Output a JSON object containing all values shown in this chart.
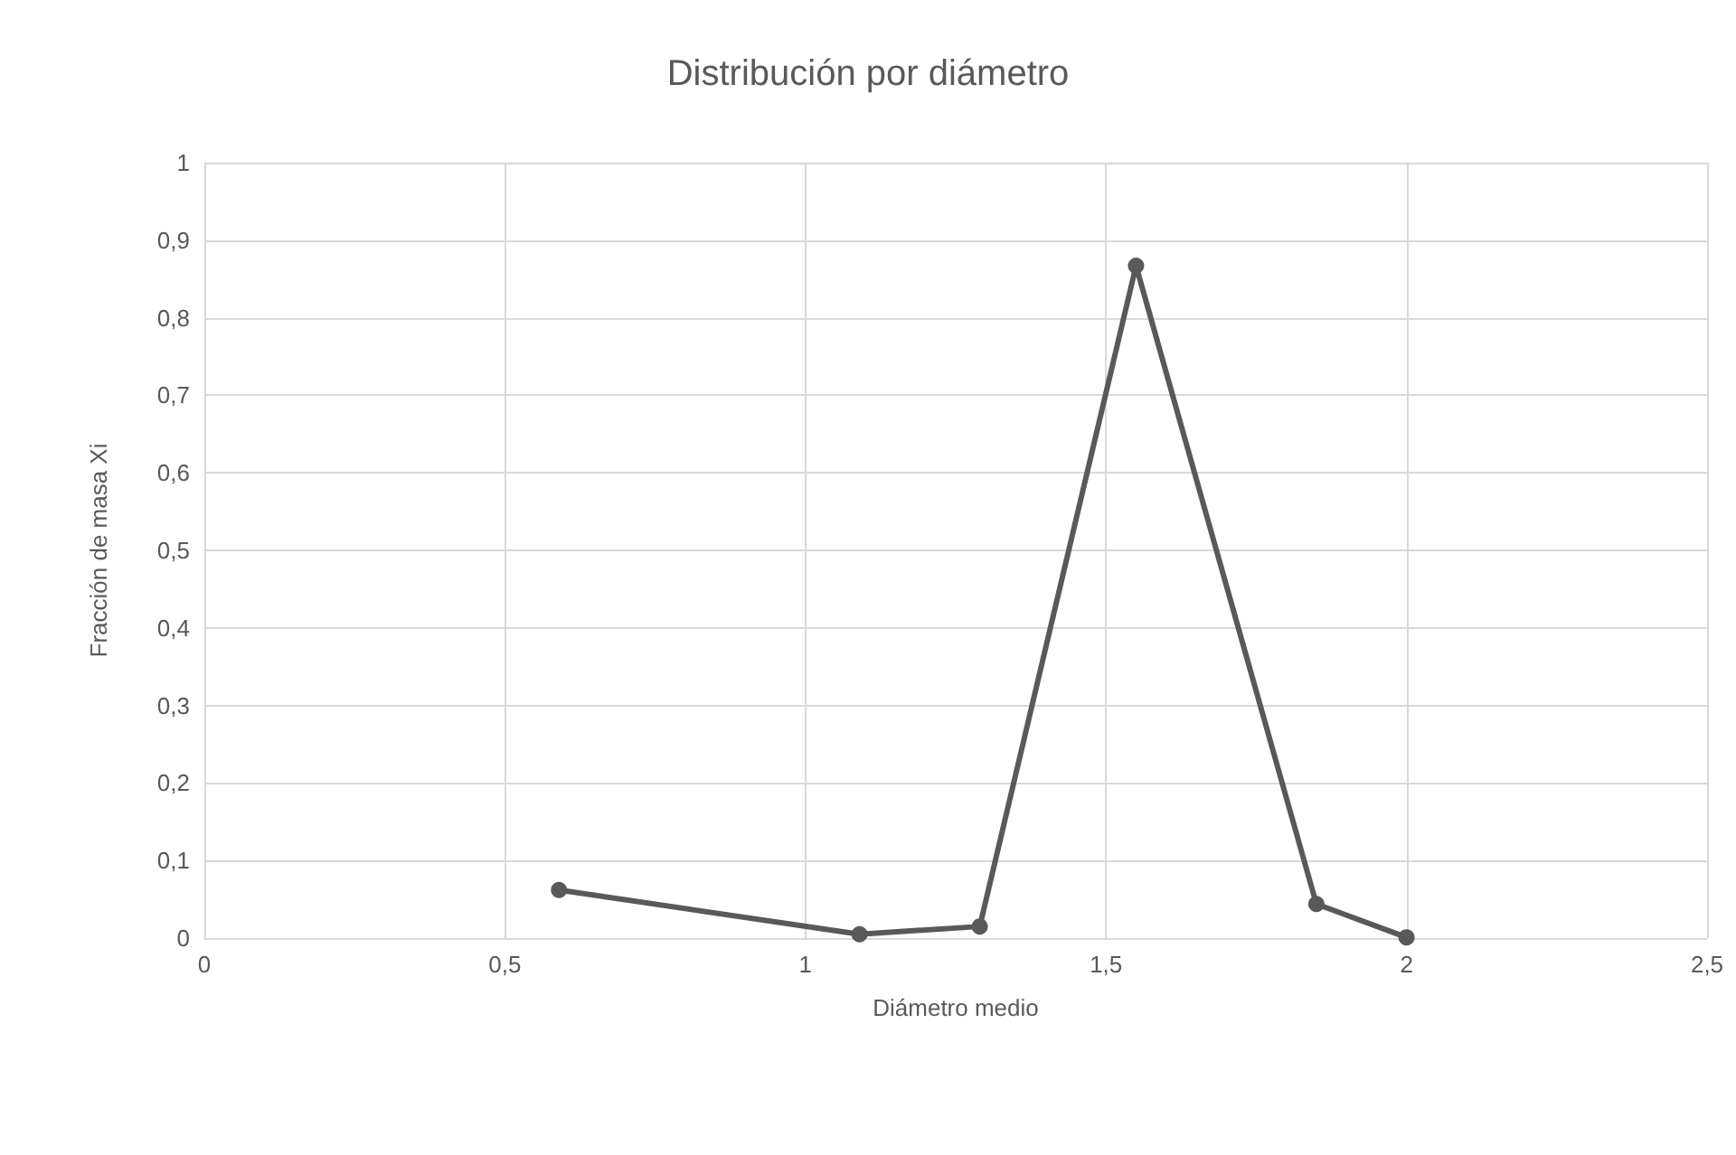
{
  "chart_data": {
    "type": "line",
    "title": "Distribución por diámetro",
    "xlabel": "Diámetro medio",
    "ylabel": "Fracción de masa Xi",
    "x": [
      0.59,
      1.09,
      1.29,
      1.55,
      1.85,
      2.0
    ],
    "series": [
      {
        "color": "#595959",
        "values": [
          0.062,
          0.005,
          0.015,
          0.867,
          0.044,
          0.001
        ]
      }
    ],
    "xlim": [
      0,
      2.5
    ],
    "xticks": [
      0,
      {
        "value": 0.5,
        "label": "0,5"
      },
      1,
      {
        "value": 1.5,
        "label": "1,5"
      },
      2,
      {
        "value": 2.5,
        "label": "2,5"
      }
    ],
    "ylim": [
      0,
      1
    ],
    "yticks": [
      0,
      {
        "value": 0.1,
        "label": "0,1"
      },
      {
        "value": 0.2,
        "label": "0,2"
      },
      {
        "value": 0.3,
        "label": "0,3"
      },
      {
        "value": 0.4,
        "label": "0,4"
      },
      {
        "value": 0.5,
        "label": "0,5"
      },
      {
        "value": 0.6,
        "label": "0,6"
      },
      {
        "value": 0.7,
        "label": "0,7"
      },
      {
        "value": 0.8,
        "label": "0,8"
      },
      {
        "value": 0.9,
        "label": "0,9"
      },
      1
    ],
    "grid": true,
    "marker": "circle",
    "line_style": "solid"
  }
}
